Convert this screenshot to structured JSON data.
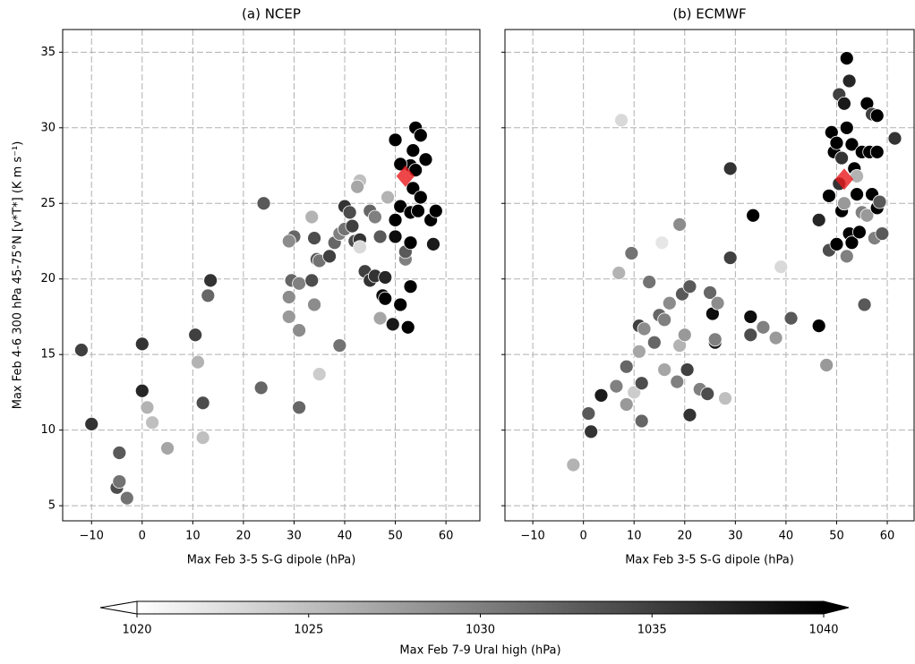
{
  "chart_data": [
    {
      "type": "scatter",
      "title": "(a) NCEP",
      "xlabel": "Max Feb 3-5 S-G dipole (hPa)",
      "ylabel": "Max Feb 4-6 300 hPa 45-75°N [v*T*] (K m s⁻¹)",
      "xlim": [
        -15.7,
        66.7
      ],
      "ylim": [
        4.0,
        36.5
      ],
      "xticks": [
        {
          "value": -10,
          "label": "−10"
        },
        0,
        10,
        20,
        30,
        40,
        50,
        60
      ],
      "yticks": [
        5,
        10,
        15,
        20,
        25,
        30,
        35
      ],
      "ytick_labels": true,
      "grid": true,
      "x": [
        -12,
        -10,
        -5,
        -4.5,
        -4.5,
        -3,
        0,
        0,
        1,
        2,
        5,
        10.5,
        11,
        12,
        12,
        13,
        13.5,
        23.5,
        24,
        29,
        29,
        29.5,
        30,
        29,
        31,
        31,
        31,
        33.5,
        33.5,
        34,
        34,
        34.5,
        35,
        35,
        37,
        38,
        39,
        39,
        40,
        40,
        41,
        41.5,
        42,
        43,
        43,
        43,
        42.5,
        44,
        45,
        45,
        46,
        46,
        47,
        47,
        47.5,
        48,
        48,
        48.5,
        49.5,
        50,
        50,
        50,
        51,
        51,
        52,
        52,
        52.5,
        53,
        53,
        53,
        53,
        53.5,
        53.5,
        54,
        54,
        54.5,
        55,
        55,
        56,
        57,
        57.5,
        58,
        51
      ],
      "y": [
        15.3,
        10.4,
        6.2,
        6.6,
        8.5,
        5.5,
        15.7,
        12.6,
        11.5,
        10.5,
        8.8,
        16.3,
        14.5,
        11.8,
        9.5,
        18.9,
        19.9,
        12.8,
        25,
        17.5,
        18.8,
        19.9,
        22.8,
        22.5,
        11.5,
        16.6,
        19.7,
        24.1,
        19.9,
        22.7,
        18.3,
        21.3,
        21.2,
        13.7,
        21.5,
        22.4,
        15.6,
        23,
        23.3,
        24.8,
        24.4,
        23.5,
        22.5,
        22.6,
        26.5,
        22.1,
        26.1,
        20.5,
        19.9,
        24.5,
        24.1,
        20.2,
        22.8,
        17.4,
        18.9,
        20.1,
        18.7,
        25.4,
        17,
        29.2,
        23.9,
        22.8,
        24.8,
        18.3,
        21.3,
        21.8,
        16.8,
        22.4,
        19.5,
        24.4,
        27.5,
        26,
        28.5,
        30,
        27.2,
        24.5,
        29.5,
        25.4,
        27.9,
        23.9,
        22.3,
        24.5,
        27.6
      ],
      "c": [
        1035,
        1036,
        1034,
        1031,
        1033,
        1031,
        1036,
        1037,
        1026,
        1025,
        1027,
        1035,
        1026,
        1034,
        1025,
        1032,
        1036,
        1032,
        1033,
        1028,
        1029,
        1032,
        1032,
        1029,
        1032,
        1029,
        1030,
        1026,
        1034,
        1034,
        1029,
        1033,
        1031,
        1024,
        1035,
        1032,
        1031,
        1030,
        1031,
        1036,
        1034,
        1035,
        1034,
        1036,
        1025,
        1023,
        1027,
        1035,
        1036,
        1032,
        1030,
        1036,
        1033,
        1027,
        1039,
        1037,
        1040,
        1026,
        1038,
        1040,
        1040,
        1039,
        1040,
        1040,
        1030,
        1033,
        1040,
        1040,
        1040,
        1040,
        1040,
        1040,
        1040,
        1040,
        1040,
        1040,
        1040,
        1040,
        1040,
        1040,
        1038,
        1040,
        1040
      ],
      "mean_point": {
        "x": 52,
        "y": 26.8,
        "color": "#e8191c"
      }
    },
    {
      "type": "scatter",
      "title": "(b) ECMWF",
      "xlabel": "Max Feb 3-5 S-G dipole (hPa)",
      "xlim": [
        -15.5,
        65.3
      ],
      "ylim": [
        4.0,
        36.5
      ],
      "xticks": [
        {
          "value": -10,
          "label": "−10"
        },
        0,
        10,
        20,
        30,
        40,
        50,
        60
      ],
      "yticks": [
        5,
        10,
        15,
        20,
        25,
        30,
        35
      ],
      "ytick_labels": false,
      "grid": true,
      "x": [
        -2,
        1,
        1.5,
        3.5,
        6.5,
        7,
        7.5,
        8.5,
        8.5,
        9.5,
        10,
        11,
        11,
        11.5,
        11.5,
        12,
        13,
        14,
        15,
        15.5,
        16,
        16,
        17,
        18.5,
        19,
        19,
        19.5,
        20,
        20.5,
        21,
        21,
        23,
        24.5,
        25,
        25.5,
        26,
        26,
        26.5,
        28,
        29,
        29,
        33,
        33,
        33.5,
        35.5,
        38,
        39,
        41,
        46.5,
        46.5,
        48,
        48.5,
        48.5,
        49,
        49.5,
        50,
        50,
        50.5,
        50.5,
        51,
        51,
        51.5,
        51.5,
        52,
        52,
        52,
        52.5,
        52.5,
        53,
        53,
        53.5,
        54,
        54.5,
        55,
        55,
        55.5,
        56,
        56.5,
        56,
        57,
        57,
        57.5,
        58,
        58,
        58,
        58.5,
        59,
        61.5,
        54
      ],
      "y": [
        7.7,
        11.1,
        9.9,
        12.3,
        12.9,
        20.4,
        30.5,
        14.2,
        11.7,
        21.7,
        12.5,
        15.2,
        16.9,
        10.6,
        13.1,
        16.7,
        19.8,
        15.8,
        17.6,
        22.4,
        17.3,
        14,
        18.4,
        13.2,
        23.6,
        15.6,
        19,
        16.3,
        14,
        11,
        19.5,
        12.7,
        12.4,
        19.1,
        17.7,
        15.8,
        16,
        18.4,
        12.1,
        27.3,
        21.4,
        17.5,
        16.3,
        24.2,
        16.8,
        16.1,
        20.8,
        17.4,
        16.9,
        23.9,
        14.3,
        25.5,
        21.9,
        29.7,
        28.4,
        29,
        22.3,
        32.2,
        26.3,
        24.5,
        28,
        31.6,
        25,
        34.6,
        30,
        21.5,
        33.1,
        23,
        22.4,
        28.9,
        27.3,
        25.6,
        23.1,
        28.4,
        24.4,
        18.3,
        31.6,
        28.4,
        24.2,
        25.6,
        30.9,
        22.7,
        24.7,
        30.8,
        28.4,
        25.1,
        23,
        29.3,
        26.8
      ],
      "c": [
        1026,
        1033,
        1036,
        1038,
        1030,
        1026,
        1023,
        1032,
        1028,
        1031,
        1024,
        1027,
        1035,
        1032,
        1034,
        1029,
        1031,
        1032,
        1032,
        1022,
        1030,
        1027,
        1029,
        1030,
        1029,
        1026,
        1033,
        1028,
        1035,
        1036,
        1033,
        1030,
        1034,
        1032,
        1039,
        1038,
        1030,
        1029,
        1025,
        1036,
        1035,
        1039,
        1034,
        1040,
        1030,
        1028,
        1023,
        1033,
        1040,
        1037,
        1028,
        1040,
        1034,
        1040,
        1040,
        1040,
        1040,
        1035,
        1036,
        1040,
        1036,
        1038,
        1028,
        1040,
        1040,
        1030,
        1037,
        1040,
        1040,
        1040,
        1040,
        1040,
        1040,
        1040,
        1030,
        1033,
        1040,
        1040,
        1028,
        1040,
        1035,
        1030,
        1040,
        1040,
        1040,
        1033,
        1033,
        1036,
        1026
      ],
      "mean_point": {
        "x": 51.5,
        "y": 26.6,
        "color": "#e8191c"
      }
    }
  ],
  "colorbar": {
    "label": "Max Feb 7-9 Ural high (hPa)",
    "clim": [
      1020,
      1040
    ],
    "ticks": [
      1020,
      1025,
      1030,
      1035,
      1040
    ],
    "cmap": [
      "#ffffff",
      "#000000"
    ]
  }
}
